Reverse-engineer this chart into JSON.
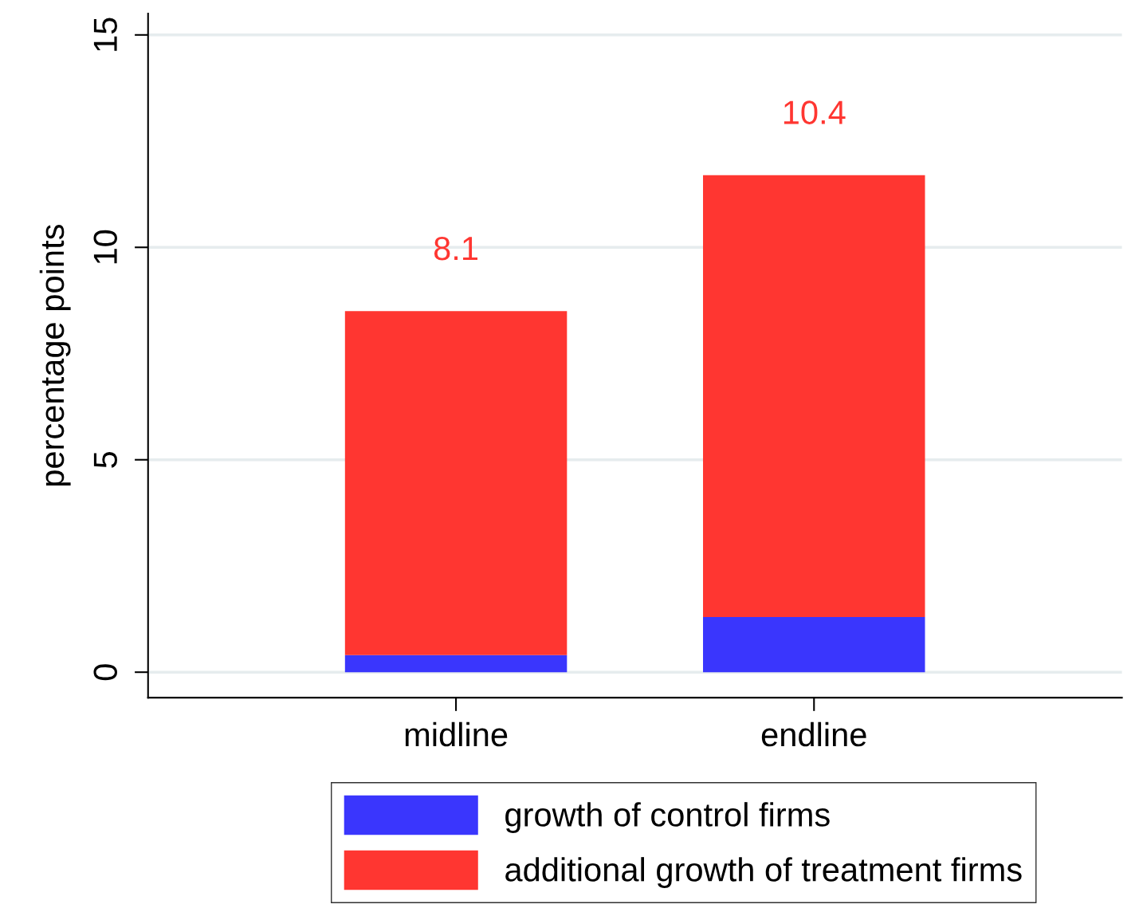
{
  "chart_data": {
    "type": "bar",
    "stacked": true,
    "ylabel": "percentage points",
    "categories": [
      "midline",
      "endline"
    ],
    "series": [
      {
        "name": "growth of control firms",
        "color": "#3a36fd",
        "values": [
          0.4,
          1.3
        ]
      },
      {
        "name": "additional growth of treatment firms",
        "color": "#ff3631",
        "values": [
          8.1,
          10.4
        ],
        "value_labels": [
          "8.1",
          "10.4"
        ]
      }
    ],
    "ylim": [
      -0.6,
      15.5
    ],
    "yticks": [
      0,
      5,
      10,
      15
    ],
    "grid": "y",
    "legend": "bottom"
  }
}
